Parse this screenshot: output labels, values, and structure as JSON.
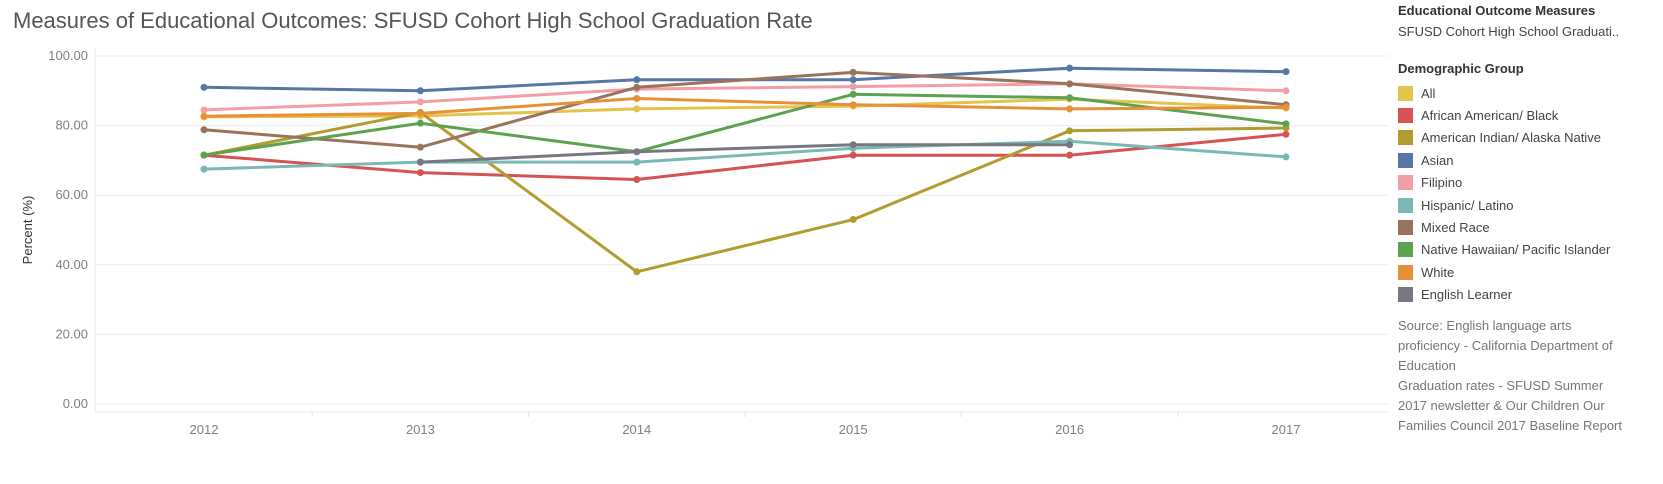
{
  "page": {
    "title": "Measures of Educational Outcomes: SFUSD Cohort High School Graduation Rate",
    "filter_heading": "Educational Outcome Measures",
    "filter_value": "SFUSD Cohort High School Graduati..",
    "legend_heading": "Demographic Group",
    "source_lines": [
      "Source: English language arts proficiency - California Department of Education",
      "Graduation rates - SFUSD Summer 2017 newsletter & Our Children Our Families Council 2017 Baseline Report"
    ]
  },
  "chart_data": {
    "type": "line",
    "title": "Measures of Educational Outcomes: SFUSD Cohort High School Graduation Rate",
    "xlabel": "",
    "ylabel": "Percent (%)",
    "x": [
      "2012",
      "2013",
      "2014",
      "2015",
      "2016",
      "2017"
    ],
    "ylim": [
      0,
      100
    ],
    "yticks": [
      "0.00",
      "20.00",
      "40.00",
      "60.00",
      "80.00",
      "100.00"
    ],
    "grid": "horizontal",
    "legend_position": "right",
    "series": [
      {
        "name": "All",
        "color": "#E3C44C",
        "values": [
          82.5,
          82.8,
          84.8,
          85.6,
          87.6,
          85.0
        ]
      },
      {
        "name": "African American/ Black",
        "color": "#D65253",
        "values": [
          71.5,
          66.5,
          64.5,
          71.5,
          71.5,
          77.5
        ]
      },
      {
        "name": "American Indian/ Alaska Native",
        "color": "#B19D2F",
        "values": [
          71.5,
          83.8,
          38.0,
          53.0,
          78.5,
          79.3
        ]
      },
      {
        "name": "Asian",
        "color": "#5677A6",
        "values": [
          91.0,
          90.0,
          93.2,
          93.2,
          96.5,
          95.5
        ]
      },
      {
        "name": "Filipino",
        "color": "#F39EA6",
        "values": [
          84.5,
          86.8,
          90.5,
          91.2,
          92.0,
          90.0
        ]
      },
      {
        "name": "Hispanic/ Latino",
        "color": "#7AB9B3",
        "values": [
          67.5,
          69.5,
          69.5,
          73.5,
          75.5,
          71.0
        ]
      },
      {
        "name": "Mixed Race",
        "color": "#9A735D",
        "values": [
          78.8,
          73.8,
          91.0,
          95.3,
          92.0,
          86.0
        ]
      },
      {
        "name": "Native Hawaiian/ Pacific Islander",
        "color": "#5DA24E",
        "values": [
          71.5,
          80.7,
          72.5,
          89.0,
          88.0,
          80.5
        ]
      },
      {
        "name": "White",
        "color": "#E89037",
        "values": [
          82.7,
          83.5,
          87.8,
          86.0,
          84.8,
          85.3
        ]
      },
      {
        "name": "English Learner",
        "color": "#767781",
        "values": [
          null,
          69.5,
          72.5,
          74.5,
          74.5,
          null
        ]
      }
    ]
  }
}
